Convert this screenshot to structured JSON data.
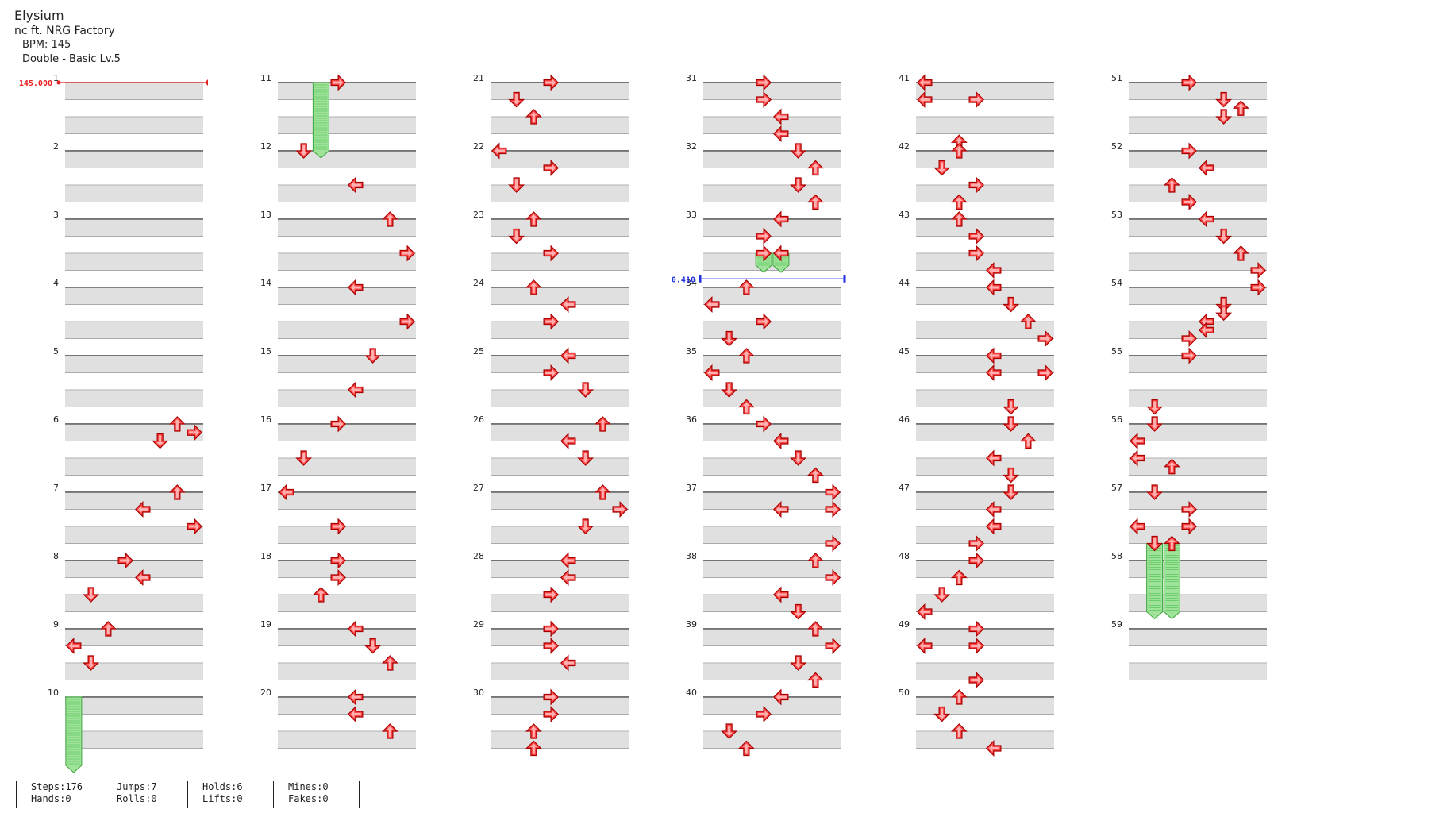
{
  "song": {
    "title": "Elysium",
    "artist": "nc ft. NRG Factory",
    "bpm_text": "BPM: 145",
    "chart_text": "Double - Basic Lv.5"
  },
  "chart": {
    "lanes": [
      "left",
      "down",
      "up",
      "right",
      "left",
      "down",
      "up",
      "right"
    ],
    "subdivisions_per_measure": 4,
    "bpm_marker": {
      "measure": 1,
      "beat": 0,
      "label": "145.000"
    },
    "stop_marker": {
      "measure": 33,
      "beat": 3.5,
      "label": "0.410"
    },
    "measures": [
      {
        "n": 1,
        "notes": []
      },
      {
        "n": 2,
        "notes": []
      },
      {
        "n": 3,
        "notes": []
      },
      {
        "n": 4,
        "notes": []
      },
      {
        "n": 5,
        "notes": []
      },
      {
        "n": 6,
        "notes": [
          [
            0,
            6
          ],
          [
            0.5,
            7
          ],
          [
            1,
            5
          ]
        ]
      },
      {
        "n": 7,
        "notes": [
          [
            0,
            6
          ],
          [
            1,
            4
          ],
          [
            2,
            7
          ]
        ]
      },
      {
        "n": 8,
        "notes": [
          [
            0,
            3
          ],
          [
            1,
            4
          ],
          [
            2,
            1
          ]
        ]
      },
      {
        "n": 9,
        "notes": [
          [
            0,
            2
          ],
          [
            1,
            0
          ],
          [
            2,
            1
          ]
        ]
      },
      {
        "n": 10,
        "notes": [
          [
            0,
            0,
            "hold",
            4
          ]
        ]
      },
      {
        "n": 11,
        "notes": [
          [
            0,
            3
          ],
          [
            0,
            2,
            "hold",
            4
          ]
        ]
      },
      {
        "n": 12,
        "notes": [
          [
            0,
            1
          ],
          [
            2,
            4
          ]
        ]
      },
      {
        "n": 13,
        "notes": [
          [
            0,
            6
          ],
          [
            2,
            7
          ]
        ]
      },
      {
        "n": 14,
        "notes": [
          [
            0,
            4
          ],
          [
            2,
            7
          ]
        ]
      },
      {
        "n": 15,
        "notes": [
          [
            0,
            5
          ],
          [
            2,
            4
          ]
        ]
      },
      {
        "n": 16,
        "notes": [
          [
            0,
            3
          ],
          [
            2,
            1
          ]
        ]
      },
      {
        "n": 17,
        "notes": [
          [
            0,
            0
          ],
          [
            2,
            3
          ]
        ]
      },
      {
        "n": 18,
        "notes": [
          [
            0,
            3
          ],
          [
            1,
            3
          ],
          [
            2,
            2
          ]
        ]
      },
      {
        "n": 19,
        "notes": [
          [
            0,
            4
          ],
          [
            1,
            5
          ],
          [
            2,
            6
          ]
        ]
      },
      {
        "n": 20,
        "notes": [
          [
            0,
            4
          ],
          [
            1,
            4
          ],
          [
            2,
            6
          ]
        ]
      },
      {
        "n": 21,
        "notes": [
          [
            0,
            3
          ],
          [
            1,
            1
          ],
          [
            2,
            2
          ]
        ]
      },
      {
        "n": 22,
        "notes": [
          [
            0,
            0
          ],
          [
            1,
            3
          ],
          [
            2,
            1
          ]
        ]
      },
      {
        "n": 23,
        "notes": [
          [
            0,
            2
          ],
          [
            1,
            1
          ],
          [
            2,
            3
          ]
        ]
      },
      {
        "n": 24,
        "notes": [
          [
            0,
            2
          ],
          [
            1,
            4
          ],
          [
            2,
            3
          ]
        ]
      },
      {
        "n": 25,
        "notes": [
          [
            0,
            4
          ],
          [
            1,
            3
          ],
          [
            2,
            5
          ]
        ]
      },
      {
        "n": 26,
        "notes": [
          [
            0,
            6
          ],
          [
            1,
            4
          ],
          [
            2,
            5
          ]
        ]
      },
      {
        "n": 27,
        "notes": [
          [
            0,
            6
          ],
          [
            1,
            7
          ],
          [
            2,
            5
          ]
        ]
      },
      {
        "n": 28,
        "notes": [
          [
            0,
            4
          ],
          [
            1,
            4
          ],
          [
            2,
            3
          ]
        ]
      },
      {
        "n": 29,
        "notes": [
          [
            0,
            3
          ],
          [
            1,
            3
          ],
          [
            2,
            4
          ]
        ]
      },
      {
        "n": 30,
        "notes": [
          [
            0,
            3
          ],
          [
            1,
            3
          ],
          [
            2,
            2
          ],
          [
            3,
            2
          ]
        ]
      },
      {
        "n": 31,
        "notes": [
          [
            0,
            3
          ],
          [
            1,
            3
          ],
          [
            2,
            4
          ],
          [
            3,
            4
          ]
        ]
      },
      {
        "n": 32,
        "notes": [
          [
            0,
            5
          ],
          [
            1,
            6
          ],
          [
            2,
            5
          ],
          [
            3,
            6
          ]
        ]
      },
      {
        "n": 33,
        "notes": [
          [
            0,
            4
          ],
          [
            1,
            3
          ],
          [
            2,
            3
          ],
          [
            2,
            4
          ],
          [
            2,
            3,
            "hold",
            0.7
          ],
          [
            2,
            4,
            "hold",
            0.7
          ]
        ]
      },
      {
        "n": 34,
        "notes": [
          [
            0,
            2
          ],
          [
            1,
            0
          ],
          [
            2,
            3
          ],
          [
            3,
            1
          ]
        ]
      },
      {
        "n": 35,
        "notes": [
          [
            0,
            2
          ],
          [
            1,
            0
          ],
          [
            2,
            1
          ],
          [
            3,
            2
          ]
        ]
      },
      {
        "n": 36,
        "notes": [
          [
            0,
            3
          ],
          [
            1,
            4
          ],
          [
            2,
            5
          ],
          [
            3,
            6
          ]
        ]
      },
      {
        "n": 37,
        "notes": [
          [
            0,
            7
          ],
          [
            1,
            4
          ],
          [
            1,
            7
          ],
          [
            3,
            7
          ]
        ]
      },
      {
        "n": 38,
        "notes": [
          [
            0,
            6
          ],
          [
            1,
            7
          ],
          [
            2,
            4
          ],
          [
            3,
            5
          ]
        ]
      },
      {
        "n": 39,
        "notes": [
          [
            0,
            6
          ],
          [
            1,
            7
          ],
          [
            2,
            5
          ],
          [
            3,
            6
          ]
        ]
      },
      {
        "n": 40,
        "notes": [
          [
            0,
            4
          ],
          [
            1,
            3
          ],
          [
            2,
            1
          ],
          [
            3,
            2
          ]
        ]
      },
      {
        "n": 41,
        "notes": [
          [
            0,
            0
          ],
          [
            1,
            0
          ],
          [
            1,
            3
          ]
        ]
      },
      {
        "n": 42,
        "notes": [
          [
            -0.5,
            2
          ],
          [
            0,
            2
          ],
          [
            1,
            1
          ],
          [
            2,
            3
          ]
        ]
      },
      {
        "n": 43,
        "notes": [
          [
            -1,
            2
          ],
          [
            0,
            2
          ],
          [
            1,
            3
          ],
          [
            2,
            3
          ]
        ]
      },
      {
        "n": 44,
        "notes": [
          [
            -1,
            4
          ],
          [
            0,
            4
          ],
          [
            1,
            5
          ],
          [
            2,
            6
          ],
          [
            3,
            7
          ]
        ]
      },
      {
        "n": 45,
        "notes": [
          [
            0,
            4
          ],
          [
            1,
            4
          ],
          [
            1,
            7
          ]
        ]
      },
      {
        "n": 46,
        "notes": [
          [
            -1,
            5
          ],
          [
            0,
            5
          ],
          [
            1,
            6
          ],
          [
            2,
            4
          ]
        ]
      },
      {
        "n": 47,
        "notes": [
          [
            -1,
            5
          ],
          [
            0,
            5
          ],
          [
            1,
            4
          ],
          [
            2,
            4
          ]
        ]
      },
      {
        "n": 48,
        "notes": [
          [
            -1,
            3
          ],
          [
            0,
            3
          ],
          [
            1,
            2
          ],
          [
            2,
            1
          ],
          [
            3,
            0
          ]
        ]
      },
      {
        "n": 49,
        "notes": [
          [
            0,
            3
          ],
          [
            1,
            0
          ],
          [
            1,
            3
          ]
        ]
      },
      {
        "n": 50,
        "notes": [
          [
            -1,
            3
          ],
          [
            0,
            2
          ],
          [
            1,
            1
          ],
          [
            2,
            2
          ],
          [
            3,
            4
          ]
        ]
      },
      {
        "n": 51,
        "notes": [
          [
            0,
            3
          ],
          [
            1,
            5
          ],
          [
            1.5,
            6
          ],
          [
            2,
            5
          ]
        ]
      },
      {
        "n": 52,
        "notes": [
          [
            0,
            3
          ],
          [
            1,
            4
          ],
          [
            2,
            2
          ],
          [
            3,
            3
          ]
        ]
      },
      {
        "n": 53,
        "notes": [
          [
            0,
            4
          ],
          [
            1,
            5
          ],
          [
            2,
            6
          ],
          [
            3,
            7
          ]
        ]
      },
      {
        "n": 54,
        "notes": [
          [
            0,
            7
          ],
          [
            1,
            5
          ],
          [
            1.5,
            5
          ],
          [
            2,
            4
          ],
          [
            2.5,
            4
          ],
          [
            3,
            3
          ]
        ]
      },
      {
        "n": 55,
        "notes": [
          [
            0,
            3
          ]
        ]
      },
      {
        "n": 56,
        "notes": [
          [
            -1,
            1
          ],
          [
            0,
            1
          ],
          [
            1,
            0
          ],
          [
            2,
            0
          ],
          [
            2.5,
            2
          ]
        ]
      },
      {
        "n": 57,
        "notes": [
          [
            0,
            1
          ],
          [
            1,
            3
          ],
          [
            2,
            0
          ],
          [
            2,
            3
          ],
          [
            3,
            1
          ],
          [
            3,
            2
          ],
          [
            3,
            1,
            "hold",
            4
          ],
          [
            3,
            2,
            "hold",
            4
          ]
        ]
      },
      {
        "n": 58,
        "notes": []
      },
      {
        "n": 59,
        "notes": []
      }
    ],
    "grid_rows": 40
  },
  "stats": [
    {
      "top": "Steps:176",
      "bottom": "Hands:0"
    },
    {
      "top": "Jumps:7",
      "bottom": "Rolls:0"
    },
    {
      "top": "Holds:6",
      "bottom": "Lifts:0"
    },
    {
      "top": "Mines:0",
      "bottom": "Fakes:0"
    }
  ],
  "colors": {
    "arrow_fill": "#ff4747",
    "arrow_stroke": "#a80000",
    "hold_fill": "#9fe39a",
    "hold_stroke": "#3aa63a",
    "band": "#e0e0e0",
    "bpm_line": "#e82020",
    "stop_line": "#2030e0"
  }
}
